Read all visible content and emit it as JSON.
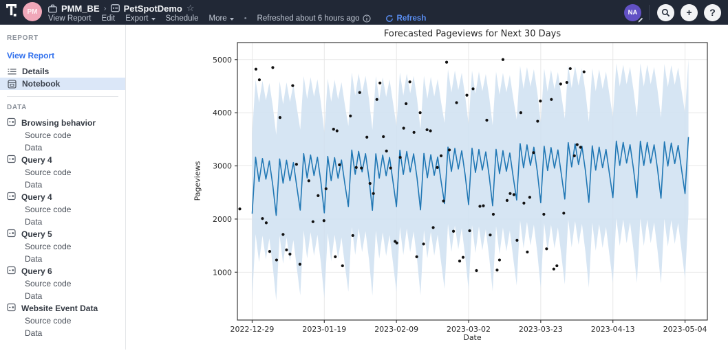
{
  "header": {
    "workspace_avatar": "PM",
    "breadcrumb": {
      "workspace": "PMM_BE",
      "separator": "›",
      "report": "PetSpotDemo"
    },
    "menu": [
      "View Report",
      "Edit",
      "Export",
      "Schedule",
      "More"
    ],
    "status_dot": "•",
    "refreshed_text": "Refreshed about 6 hours ago",
    "refresh_label": "Refresh",
    "user_avatar": "NA",
    "add_label": "+",
    "help_label": "?"
  },
  "sidebar": {
    "report_section": "REPORT",
    "view_report": "View Report",
    "details": "Details",
    "notebook": "Notebook",
    "data_section": "DATA",
    "data_items": [
      {
        "label": "Browsing behavior",
        "children": [
          "Source code",
          "Data"
        ]
      },
      {
        "label": "Query 4",
        "children": [
          "Source code",
          "Data"
        ]
      },
      {
        "label": "Query 4",
        "children": [
          "Source code",
          "Data"
        ]
      },
      {
        "label": "Query 5",
        "children": [
          "Source code",
          "Data"
        ]
      },
      {
        "label": "Query 6",
        "children": [
          "Source code",
          "Data"
        ]
      },
      {
        "label": "Website Event Data",
        "children": [
          "Source code",
          "Data"
        ]
      }
    ]
  },
  "chart_data": {
    "type": "line",
    "title": "Forecasted Pageviews for Next 30 Days",
    "xlabel": "Date",
    "ylabel": "Pageviews",
    "axes": {
      "x_domain_days": [
        -4.3,
        132.5
      ],
      "y_domain": [
        100,
        5320
      ],
      "x_tick_days": [
        0,
        21,
        42,
        63,
        84,
        105,
        126
      ],
      "x_tick_labels": [
        "2022-12-29",
        "2023-01-19",
        "2023-02-09",
        "2023-03-02",
        "2023-03-23",
        "2023-04-13",
        "2023-05-04"
      ],
      "y_ticks": [
        1000,
        2000,
        3000,
        4000,
        5000
      ],
      "grid": true
    },
    "forecast": {
      "start_date": "2022-12-29",
      "n_days": 128,
      "trend_start": 2800,
      "trend_slope": 2.7,
      "weekly_seasonality": [
        -700,
        360,
        -100,
        330,
        -60,
        280,
        -180
      ],
      "week_variation": [
        0,
        -50,
        30,
        -40,
        60,
        -30,
        20,
        -60,
        40,
        0,
        -40,
        50,
        -20,
        30,
        -50,
        20,
        0,
        -30,
        40
      ],
      "band": {
        "upper_offset": 1480,
        "upper_seasonal_mult": 0.95,
        "lower_offset": -1500,
        "lower_seasonal_mult": 1.15
      }
    },
    "actuals_scatter": [
      [
        -3.6,
        2190
      ],
      [
        1.1,
        4820
      ],
      [
        2.1,
        4620
      ],
      [
        3.0,
        2010
      ],
      [
        4.1,
        1930
      ],
      [
        5.1,
        1390
      ],
      [
        6.0,
        4850
      ],
      [
        7.1,
        1230
      ],
      [
        8.1,
        3910
      ],
      [
        9.0,
        1710
      ],
      [
        10.0,
        1420
      ],
      [
        11.0,
        1340
      ],
      [
        11.8,
        4510
      ],
      [
        12.9,
        3030
      ],
      [
        13.9,
        1150
      ],
      [
        16.5,
        2720
      ],
      [
        17.7,
        1950
      ],
      [
        19.2,
        2440
      ],
      [
        20.9,
        1970
      ],
      [
        21.5,
        2570
      ],
      [
        23.7,
        3690
      ],
      [
        24.2,
        1290
      ],
      [
        24.7,
        3660
      ],
      [
        25.4,
        3020
      ],
      [
        26.3,
        1120
      ],
      [
        28.6,
        3940
      ],
      [
        29.3,
        1690
      ],
      [
        30.3,
        2970
      ],
      [
        31.3,
        4380
      ],
      [
        31.8,
        2960
      ],
      [
        33.4,
        3540
      ],
      [
        34.3,
        2670
      ],
      [
        35.3,
        2480
      ],
      [
        36.3,
        4250
      ],
      [
        37.2,
        4560
      ],
      [
        38.2,
        3550
      ],
      [
        39.1,
        3280
      ],
      [
        40.3,
        2960
      ],
      [
        41.6,
        1580
      ],
      [
        42.1,
        1550
      ],
      [
        43.1,
        3160
      ],
      [
        44.1,
        3710
      ],
      [
        44.8,
        4170
      ],
      [
        45.9,
        4580
      ],
      [
        47.1,
        3630
      ],
      [
        47.9,
        1290
      ],
      [
        48.9,
        4000
      ],
      [
        49.9,
        1530
      ],
      [
        50.9,
        3680
      ],
      [
        51.9,
        3660
      ],
      [
        52.7,
        1840
      ],
      [
        53.9,
        2970
      ],
      [
        55.0,
        3190
      ],
      [
        55.7,
        2340
      ],
      [
        56.6,
        4950
      ],
      [
        57.4,
        3300
      ],
      [
        58.6,
        1770
      ],
      [
        59.5,
        4190
      ],
      [
        60.4,
        1210
      ],
      [
        61.4,
        1280
      ],
      [
        62.5,
        4330
      ],
      [
        63.3,
        1780
      ],
      [
        64.3,
        4450
      ],
      [
        65.3,
        1030
      ],
      [
        66.3,
        2240
      ],
      [
        67.3,
        2250
      ],
      [
        68.3,
        3860
      ],
      [
        69.3,
        1700
      ],
      [
        70.2,
        2090
      ],
      [
        71.3,
        1040
      ],
      [
        72.0,
        1230
      ],
      [
        73.0,
        5000
      ],
      [
        74.2,
        2350
      ],
      [
        75.1,
        2480
      ],
      [
        76.2,
        2460
      ],
      [
        77.1,
        1600
      ],
      [
        78.2,
        4000
      ],
      [
        79.1,
        2300
      ],
      [
        80.1,
        1380
      ],
      [
        80.8,
        2410
      ],
      [
        81.9,
        3250
      ],
      [
        83.1,
        3840
      ],
      [
        83.9,
        4220
      ],
      [
        84.9,
        2090
      ],
      [
        85.7,
        1440
      ],
      [
        87.1,
        4250
      ],
      [
        87.8,
        1060
      ],
      [
        88.7,
        1120
      ],
      [
        89.8,
        4540
      ],
      [
        90.7,
        2110
      ],
      [
        91.6,
        4570
      ],
      [
        92.6,
        4830
      ],
      [
        93.8,
        3190
      ],
      [
        94.6,
        3400
      ],
      [
        95.6,
        3350
      ],
      [
        96.6,
        4770
      ]
    ],
    "colors": {
      "line": "#2077b4",
      "band": "#cfe1f1",
      "points": "#111111",
      "grid": "#e7e7e7",
      "spine": "#3a3a3a",
      "text": "#262626"
    }
  }
}
